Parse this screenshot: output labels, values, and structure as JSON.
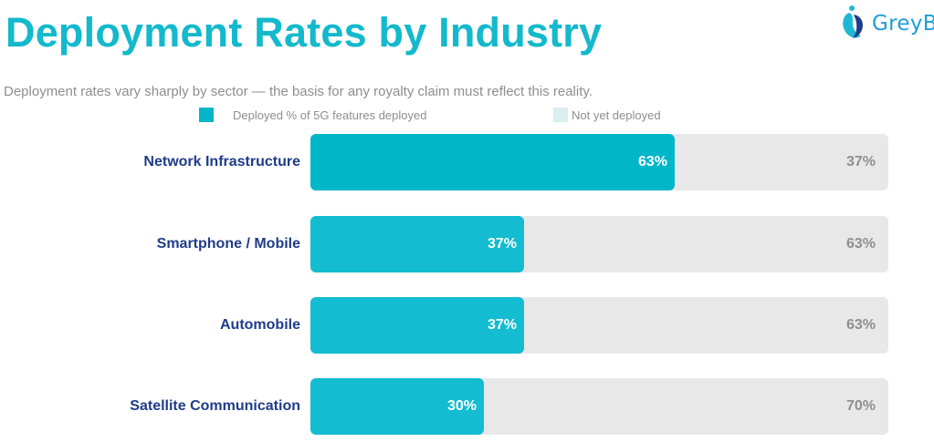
{
  "header": {
    "title": "Deployment Rates by Industry",
    "subtitle": "Deployment rates vary sharply by sector — the basis for any royalty claim must reflect this reality."
  },
  "logo": {
    "text": "GreyB",
    "icon": "greyb-logo-icon",
    "color": "#1b9fd6"
  },
  "colors": {
    "title": "#13b9cc",
    "deployed": "#13bcd0",
    "deployed_highlight": "#02b6ca",
    "remaining": "#e8e8e8",
    "category_label": "#1f3c8a",
    "legend_notyet": "#dbeef0"
  },
  "chart_data": {
    "type": "bar",
    "orientation": "horizontal",
    "stacked": true,
    "categories": [
      "Network Infrastructure",
      "Smartphone / Mobile",
      "Automobile",
      "Satellite Communication"
    ],
    "series": [
      {
        "name": "Deployed % of 5G features deployed",
        "values": [
          63,
          37,
          37,
          30
        ]
      },
      {
        "name": "Not yet deployed",
        "values": [
          37,
          63,
          63,
          70
        ]
      }
    ],
    "value_labels": {
      "deployed": [
        "63%",
        "37%",
        "37%",
        "30%"
      ],
      "remaining": [
        "37%",
        "63%",
        "63%",
        "70%"
      ]
    },
    "xlim": [
      0,
      100
    ],
    "legend_position": "top",
    "grid": false
  }
}
